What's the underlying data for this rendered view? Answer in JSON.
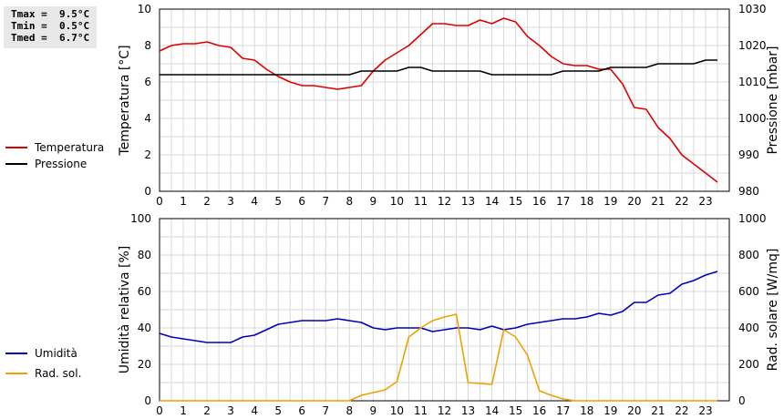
{
  "stats": {
    "tmax": "Tmax =  9.5°C",
    "tmin": "Tmin =  0.5°C",
    "tmed": "Tmed =  6.7°C"
  },
  "colors": {
    "temp": "#dd0000",
    "press": "#000000",
    "hum": "#0000bb",
    "rad": "#f0a000",
    "grid": "#d9d9d9"
  },
  "chart_data": [
    {
      "type": "line",
      "xticks": [
        "0",
        "1",
        "2",
        "3",
        "4",
        "5",
        "6",
        "7",
        "8",
        "9",
        "10",
        "11",
        "12",
        "13",
        "14",
        "15",
        "16",
        "17",
        "18",
        "19",
        "20",
        "21",
        "22",
        "23"
      ],
      "xlim": [
        0,
        24
      ],
      "ylabel_left": "Temperatura [°C]",
      "ylabel_right": "Pressione [mbar]",
      "ylim_left": [
        0,
        10
      ],
      "ylim_right": [
        980,
        1030
      ],
      "yticks_left": [
        "0",
        "2",
        "4",
        "6",
        "8",
        "10"
      ],
      "yticks_right": [
        "980",
        "990",
        "1000",
        "1010",
        "1020",
        "1030"
      ],
      "grid": true,
      "legend_position": "left",
      "series": [
        {
          "name": "Temperatura",
          "axis": "left",
          "x": [
            0,
            0.5,
            1,
            1.5,
            2,
            2.5,
            3,
            3.5,
            4,
            4.5,
            5,
            5.5,
            6,
            6.5,
            7,
            7.5,
            8,
            8.5,
            9,
            9.5,
            10,
            10.5,
            11,
            11.5,
            12,
            12.5,
            13,
            13.5,
            14,
            14.5,
            15,
            15.5,
            16,
            16.5,
            17,
            17.5,
            18,
            18.5,
            19,
            19.5,
            20,
            20.5,
            21,
            21.5,
            22,
            22.5,
            23,
            23.5
          ],
          "values": [
            7.7,
            8.0,
            8.1,
            8.1,
            8.2,
            8.0,
            7.9,
            7.3,
            7.2,
            6.7,
            6.3,
            6.0,
            5.8,
            5.8,
            5.7,
            5.6,
            5.7,
            5.8,
            6.6,
            7.2,
            7.6,
            8.0,
            8.6,
            9.2,
            9.2,
            9.1,
            9.1,
            9.4,
            9.2,
            9.5,
            9.3,
            8.5,
            8.0,
            7.4,
            7.0,
            6.9,
            6.9,
            6.7,
            6.7,
            5.9,
            4.6,
            4.5,
            3.5,
            2.9,
            2.0,
            1.5,
            1.0,
            0.5
          ]
        },
        {
          "name": "Pressione",
          "axis": "right",
          "x": [
            0,
            8,
            8.5,
            10,
            10.5,
            11,
            11.5,
            13.5,
            14,
            16.5,
            17,
            18.5,
            19,
            20.5,
            21,
            22.5,
            23,
            23.5
          ],
          "values": [
            1012,
            1012,
            1013,
            1013,
            1014,
            1014,
            1013,
            1013,
            1012,
            1012,
            1013,
            1013,
            1014,
            1014,
            1015,
            1015,
            1016,
            1016
          ]
        }
      ]
    },
    {
      "type": "line",
      "xticks": [
        "0",
        "1",
        "2",
        "3",
        "4",
        "5",
        "6",
        "7",
        "8",
        "9",
        "10",
        "11",
        "12",
        "13",
        "14",
        "15",
        "16",
        "17",
        "18",
        "19",
        "20",
        "21",
        "22",
        "23"
      ],
      "xlim": [
        0,
        24
      ],
      "ylabel_left": "Umidità relativa [%]",
      "ylabel_right": "Rad. solare [W/mq]",
      "ylim_left": [
        0,
        100
      ],
      "ylim_right": [
        0,
        1000
      ],
      "yticks_left": [
        "0",
        "20",
        "40",
        "60",
        "80",
        "100"
      ],
      "yticks_right": [
        "0",
        "200",
        "400",
        "600",
        "800",
        "1000"
      ],
      "grid": true,
      "legend_position": "left",
      "series": [
        {
          "name": "Umidità",
          "axis": "left",
          "x": [
            0,
            0.5,
            1,
            1.5,
            2,
            2.5,
            3,
            3.5,
            4,
            4.5,
            5,
            5.5,
            6,
            6.5,
            7,
            7.5,
            8,
            8.5,
            9,
            9.5,
            10,
            10.5,
            11,
            11.5,
            12,
            12.5,
            13,
            13.5,
            14,
            14.5,
            15,
            15.5,
            16,
            16.5,
            17,
            17.5,
            18,
            18.5,
            19,
            19.5,
            20,
            20.5,
            21,
            21.5,
            22,
            22.5,
            23,
            23.5
          ],
          "values": [
            37,
            35,
            34,
            33,
            32,
            32,
            32,
            35,
            36,
            39,
            42,
            43,
            44,
            44,
            44,
            45,
            44,
            43,
            40,
            39,
            40,
            40,
            40,
            38,
            39,
            40,
            40,
            39,
            41,
            39,
            40,
            42,
            43,
            44,
            45,
            45,
            46,
            48,
            47,
            49,
            54,
            54,
            58,
            59,
            64,
            66,
            69,
            71
          ]
        },
        {
          "name": "Rad. sol.",
          "axis": "right",
          "x": [
            0,
            8,
            8.5,
            9,
            9.5,
            10,
            10.5,
            11,
            11.5,
            12,
            12.5,
            13,
            13.5,
            14,
            14.5,
            15,
            15.5,
            16,
            16.5,
            17,
            17.5,
            18,
            23.5
          ],
          "values": [
            0,
            0,
            30,
            45,
            60,
            105,
            350,
            400,
            440,
            460,
            475,
            100,
            95,
            90,
            390,
            350,
            250,
            55,
            30,
            10,
            0,
            0,
            0
          ]
        }
      ]
    }
  ]
}
